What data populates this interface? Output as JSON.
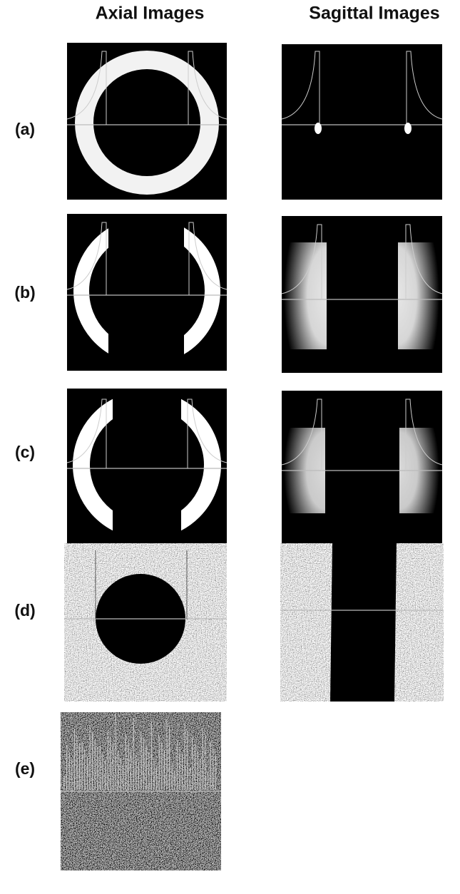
{
  "headers": {
    "axial": "Axial Images",
    "sagittal": "Sagittal Images"
  },
  "panels": [
    "(a)",
    "(b)",
    "(c)",
    "(d)",
    "(e)"
  ]
}
